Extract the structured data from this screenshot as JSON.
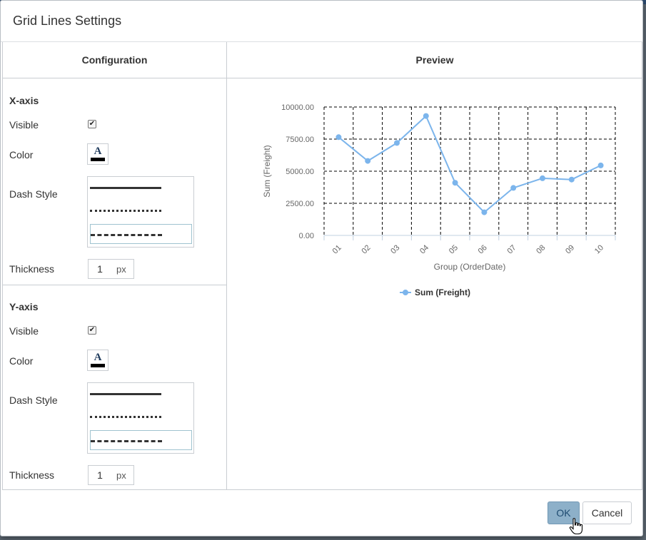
{
  "dialog": {
    "title": "Grid Lines Settings"
  },
  "config": {
    "header": "Configuration",
    "x_axis": {
      "title": "X-axis",
      "visible_label": "Visible",
      "visible_checked": "✔",
      "color_label": "Color",
      "color_glyph": "A",
      "dash_label": "Dash Style",
      "thickness_label": "Thickness",
      "thickness_value": "1",
      "thickness_unit": "px"
    },
    "y_axis": {
      "title": "Y-axis",
      "visible_label": "Visible",
      "visible_checked": "✔",
      "color_label": "Color",
      "color_glyph": "A",
      "dash_label": "Dash Style",
      "thickness_label": "Thickness",
      "thickness_value": "1",
      "thickness_unit": "px"
    }
  },
  "preview": {
    "header": "Preview"
  },
  "chart_data": {
    "type": "line",
    "categories": [
      "01",
      "02",
      "03",
      "04",
      "05",
      "06",
      "07",
      "08",
      "09",
      "10"
    ],
    "series": [
      {
        "name": "Sum (Freight)",
        "values": [
          7650,
          5800,
          7200,
          9300,
          4100,
          1800,
          3700,
          4450,
          4350,
          5450
        ],
        "color": "#7cb5ec"
      }
    ],
    "y_ticks": [
      "10000.00",
      "7500.00",
      "5000.00",
      "2500.00",
      "0.00"
    ],
    "ylim": [
      0,
      10000
    ],
    "xlabel": "Group (OrderDate)",
    "ylabel": "Sum (Freight)",
    "legend": "Sum (Freight)",
    "grid": "dashed"
  },
  "footer": {
    "ok_label": "OK",
    "cancel_label": "Cancel"
  }
}
